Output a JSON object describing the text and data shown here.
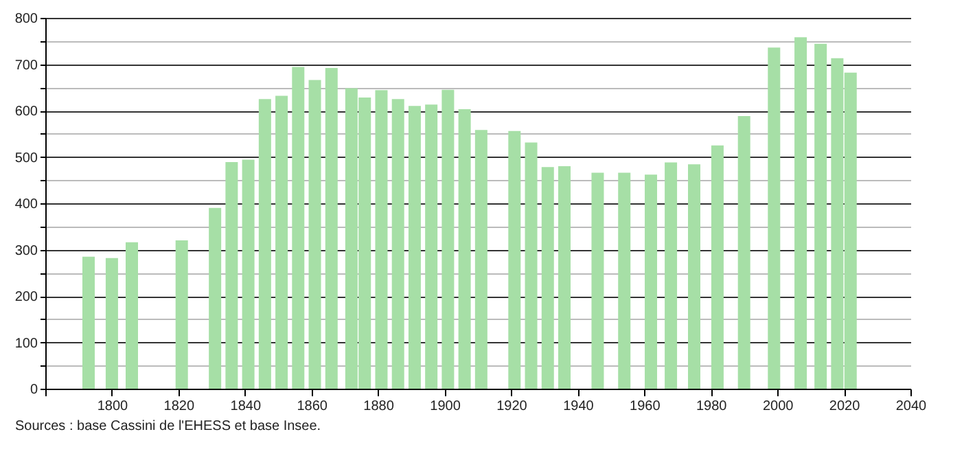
{
  "chart_data": {
    "type": "bar",
    "x": [
      1793,
      1800,
      1806,
      1821,
      1831,
      1836,
      1841,
      1846,
      1851,
      1856,
      1861,
      1866,
      1872,
      1876,
      1881,
      1886,
      1891,
      1896,
      1901,
      1906,
      1911,
      1921,
      1926,
      1931,
      1936,
      1946,
      1954,
      1962,
      1968,
      1975,
      1982,
      1990,
      1999,
      2007,
      2013,
      2018,
      2022
    ],
    "values": [
      285,
      282,
      316,
      320,
      390,
      489,
      494,
      625,
      632,
      694,
      666,
      692,
      648,
      628,
      644,
      625,
      610,
      613,
      645,
      603,
      558,
      556,
      531,
      478,
      480,
      466,
      466,
      462,
      488,
      484,
      525,
      588,
      736,
      758,
      744,
      713,
      682
    ],
    "color": "#a6dfa6",
    "xlim": [
      1780,
      2040
    ],
    "xticks": [
      {
        "value": 1780,
        "label": null
      },
      1800,
      1820,
      1840,
      1860,
      1880,
      1900,
      1920,
      1940,
      1960,
      1980,
      2000,
      2020,
      2040
    ],
    "ylim": [
      0,
      800
    ],
    "yticks": [
      0,
      {
        "value": 50,
        "label": null
      },
      100,
      {
        "value": 150,
        "label": null
      },
      200,
      {
        "value": 250,
        "label": null
      },
      300,
      {
        "value": 350,
        "label": null
      },
      400,
      {
        "value": 450,
        "label": null
      },
      500,
      {
        "value": 550,
        "label": null
      },
      600,
      {
        "value": 650,
        "label": null
      },
      700,
      {
        "value": 750,
        "label": null
      },
      800
    ],
    "grid": "y",
    "annotations": [
      "Sources : base Cassini de l'EHESS et base Insee."
    ]
  }
}
